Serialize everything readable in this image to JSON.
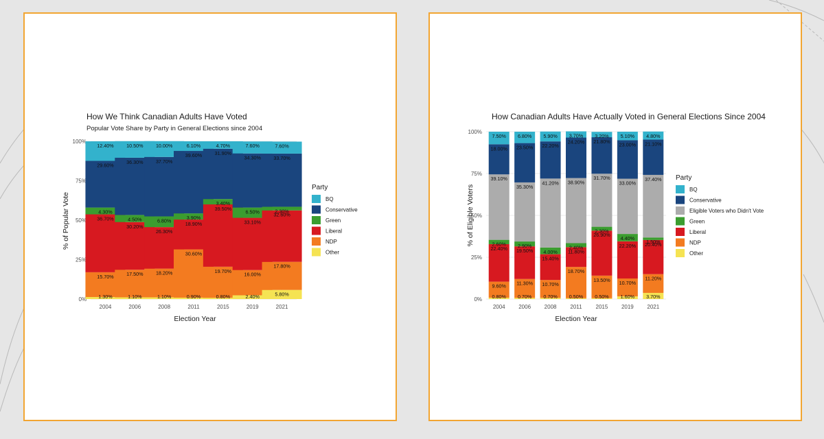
{
  "colors": {
    "BQ": "#33b2cc",
    "Conservative": "#1a457e",
    "Eligible Voters who Didn't Vote": "#acacac",
    "Green": "#3b9d2f",
    "Liberal": "#d71920",
    "NDP": "#f37b20",
    "Other": "#f5e353"
  },
  "chart_data": [
    {
      "type": "bar",
      "stacked": true,
      "title": "How We Think Canadian Adults Have Voted",
      "subtitle": "Popular Vote Share by Party in General Elections since 2004",
      "xlabel": "Election Year",
      "ylabel": "% of Popular Vote",
      "ylim": [
        0,
        100
      ],
      "yticks": [
        "0%",
        "25%",
        "50%",
        "75%",
        "100%"
      ],
      "legend_title": "Party",
      "legend_position": "right",
      "categories": [
        "2004",
        "2006",
        "2008",
        "2011",
        "2015",
        "2019",
        "2021"
      ],
      "series": [
        {
          "name": "Other",
          "values": [
            1.3,
            1.1,
            1.1,
            0.9,
            0.8,
            2.4,
            5.8
          ],
          "labels": [
            "1.30%",
            "1.10%",
            "1.10%",
            "0.90%",
            "0.80%",
            "2.40%",
            "5.80%"
          ]
        },
        {
          "name": "NDP",
          "values": [
            15.7,
            17.5,
            18.2,
            30.6,
            19.7,
            16.0,
            17.8
          ],
          "labels": [
            "15.70%",
            "17.50%",
            "18.20%",
            "30.60%",
            "19.70%",
            "16.00%",
            "17.80%"
          ]
        },
        {
          "name": "Liberal",
          "values": [
            36.7,
            30.2,
            26.3,
            18.9,
            39.5,
            33.1,
            32.6
          ],
          "labels": [
            "36.70%",
            "30.20%",
            "26.30%",
            "18.90%",
            "39.50%",
            "33.10%",
            "32.60%"
          ]
        },
        {
          "name": "Green",
          "values": [
            4.3,
            4.5,
            6.8,
            3.9,
            3.4,
            6.5,
            2.3
          ],
          "labels": [
            "4.30%",
            "4.50%",
            "6.80%",
            "3.90%",
            "3.40%",
            "6.50%",
            "2.30%"
          ]
        },
        {
          "name": "Conservative",
          "values": [
            29.6,
            36.3,
            37.7,
            39.6,
            31.9,
            34.3,
            33.7
          ],
          "labels": [
            "29.60%",
            "36.30%",
            "37.70%",
            "39.60%",
            "31.90%",
            "34.30%",
            "33.70%"
          ]
        },
        {
          "name": "BQ",
          "values": [
            12.4,
            10.5,
            10.0,
            6.1,
            4.7,
            7.6,
            7.6
          ],
          "labels": [
            "12.40%",
            "10.50%",
            "10.00%",
            "6.10%",
            "4.70%",
            "7.60%",
            "7.60%"
          ]
        }
      ],
      "legend": [
        "BQ",
        "Conservative",
        "Green",
        "Liberal",
        "NDP",
        "Other"
      ]
    },
    {
      "type": "bar",
      "stacked": true,
      "title": "How Canadian Adults Have Actually Voted in General Elections Since 2004",
      "subtitle": "",
      "xlabel": "Election Year",
      "ylabel": "% of Eligible Voters",
      "ylim": [
        0,
        100
      ],
      "yticks": [
        "0%",
        "25%",
        "50%",
        "75%",
        "100%"
      ],
      "legend_title": "Party",
      "legend_position": "right",
      "categories": [
        "2004",
        "2006",
        "2008",
        "2011",
        "2015",
        "2019",
        "2021"
      ],
      "series": [
        {
          "name": "Other",
          "values": [
            0.8,
            0.7,
            0.7,
            0.5,
            0.5,
            1.6,
            3.7
          ],
          "labels": [
            "0.80%",
            "0.70%",
            "0.70%",
            "0.50%",
            "0.50%",
            "1.60%",
            "3.70%"
          ]
        },
        {
          "name": "NDP",
          "values": [
            9.6,
            11.3,
            10.7,
            18.7,
            13.5,
            10.7,
            11.2
          ],
          "labels": [
            "9.60%",
            "11.30%",
            "10.70%",
            "18.70%",
            "13.50%",
            "10.70%",
            "11.20%"
          ]
        },
        {
          "name": "Liberal",
          "values": [
            22.4,
            19.5,
            15.4,
            11.8,
            26.9,
            22.2,
            20.4
          ],
          "labels": [
            "22.40%",
            "19.50%",
            "15.40%",
            "11.80%",
            "26.90%",
            "22.20%",
            "20.40%"
          ]
        },
        {
          "name": "Green",
          "values": [
            2.6,
            2.9,
            4.0,
            2.4,
            2.3,
            4.4,
            1.5
          ],
          "labels": [
            "2.60%",
            "2.90%",
            "4.00%",
            "2.40%",
            "2.30%",
            "4.40%",
            "1.50%"
          ]
        },
        {
          "name": "Eligible Voters who Didn't Vote",
          "values": [
            39.1,
            35.3,
            41.2,
            38.9,
            31.7,
            33.0,
            37.4
          ],
          "labels": [
            "39.10%",
            "35.30%",
            "41.20%",
            "38.90%",
            "31.70%",
            "33.00%",
            "37.40%"
          ]
        },
        {
          "name": "Conservative",
          "values": [
            18.0,
            23.5,
            22.2,
            24.2,
            21.8,
            23.0,
            21.1
          ],
          "labels": [
            "18.00%",
            "23.50%",
            "22.20%",
            "24.20%",
            "21.80%",
            "23.00%",
            "21.10%"
          ]
        },
        {
          "name": "BQ",
          "values": [
            7.5,
            6.8,
            5.9,
            3.7,
            3.2,
            5.1,
            4.8
          ],
          "labels": [
            "7.50%",
            "6.80%",
            "5.90%",
            "3.70%",
            "3.20%",
            "5.10%",
            "4.80%"
          ]
        }
      ],
      "legend": [
        "BQ",
        "Conservative",
        "Eligible Voters who Didn't Vote",
        "Green",
        "Liberal",
        "NDP",
        "Other"
      ]
    }
  ]
}
